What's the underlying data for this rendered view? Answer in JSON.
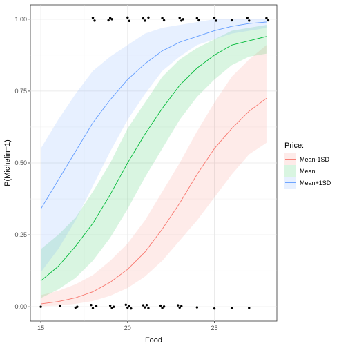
{
  "chart_data": {
    "type": "line",
    "xlabel": "Food",
    "ylabel": "P(Michelin=1)",
    "xlim": [
      14.4,
      28.6
    ],
    "ylim": [
      -0.05,
      1.05
    ],
    "x_ticks": [
      15,
      20,
      25
    ],
    "y_ticks": [
      0.0,
      0.25,
      0.5,
      0.75,
      1.0
    ],
    "x_tick_labels": [
      "15",
      "20",
      "25"
    ],
    "y_tick_labels": [
      "0.00",
      "0.25",
      "0.50",
      "0.75",
      "1.00"
    ],
    "grid": true,
    "legend": {
      "title": "Price:",
      "position": "right"
    },
    "x": [
      15,
      16,
      17,
      18,
      19,
      20,
      21,
      22,
      23,
      24,
      25,
      26,
      27,
      28
    ],
    "series": [
      {
        "name": "Mean-1SD",
        "color": "#F8766D",
        "fill": "#F8766D",
        "values": [
          0.01,
          0.018,
          0.031,
          0.052,
          0.085,
          0.13,
          0.19,
          0.27,
          0.36,
          0.46,
          0.55,
          0.62,
          0.68,
          0.725
        ],
        "lower": [
          0.002,
          0.004,
          0.01,
          0.02,
          0.038,
          0.065,
          0.105,
          0.16,
          0.23,
          0.3,
          0.38,
          0.46,
          0.53,
          0.57
        ],
        "upper": [
          0.04,
          0.055,
          0.078,
          0.11,
          0.16,
          0.22,
          0.3,
          0.4,
          0.5,
          0.61,
          0.71,
          0.8,
          0.86,
          0.91
        ]
      },
      {
        "name": "Mean",
        "color": "#00BA38",
        "fill": "#00BA38",
        "values": [
          0.09,
          0.14,
          0.21,
          0.29,
          0.39,
          0.5,
          0.6,
          0.69,
          0.77,
          0.83,
          0.875,
          0.91,
          0.925,
          0.94
        ],
        "lower": [
          0.03,
          0.06,
          0.1,
          0.16,
          0.24,
          0.34,
          0.45,
          0.55,
          0.65,
          0.73,
          0.79,
          0.84,
          0.87,
          0.88
        ],
        "upper": [
          0.2,
          0.25,
          0.31,
          0.4,
          0.5,
          0.62,
          0.71,
          0.8,
          0.86,
          0.9,
          0.93,
          0.96,
          0.97,
          0.98
        ]
      },
      {
        "name": "Mean+1SD",
        "color": "#619CFF",
        "fill": "#619CFF",
        "values": [
          0.34,
          0.44,
          0.54,
          0.64,
          0.72,
          0.79,
          0.845,
          0.89,
          0.92,
          0.94,
          0.96,
          0.975,
          0.985,
          0.99
        ],
        "lower": [
          0.12,
          0.2,
          0.3,
          0.42,
          0.54,
          0.65,
          0.74,
          0.82,
          0.87,
          0.91,
          0.93,
          0.95,
          0.96,
          0.97
        ],
        "upper": [
          0.55,
          0.65,
          0.74,
          0.82,
          0.87,
          0.91,
          0.95,
          0.97,
          0.98,
          0.99,
          1.0,
          1.0,
          1.0,
          1.0
        ]
      }
    ],
    "observations": [
      {
        "x": 15.0,
        "y": 0.0
      },
      {
        "x": 16.1,
        "y": 0.004
      },
      {
        "x": 17.0,
        "y": -0.003
      },
      {
        "x": 17.1,
        "y": 0.0
      },
      {
        "x": 17.9,
        "y": 0.006
      },
      {
        "x": 18.0,
        "y": -0.005
      },
      {
        "x": 18.2,
        "y": 0.002
      },
      {
        "x": 19.0,
        "y": 0.004
      },
      {
        "x": 19.1,
        "y": -0.004
      },
      {
        "x": 19.2,
        "y": 0.0
      },
      {
        "x": 19.9,
        "y": 0.007
      },
      {
        "x": 20.0,
        "y": -0.003
      },
      {
        "x": 20.1,
        "y": 0.003
      },
      {
        "x": 20.2,
        "y": -0.006
      },
      {
        "x": 20.9,
        "y": 0.005
      },
      {
        "x": 21.0,
        "y": -0.002
      },
      {
        "x": 21.1,
        "y": 0.006
      },
      {
        "x": 21.2,
        "y": -0.005
      },
      {
        "x": 21.9,
        "y": 0.004
      },
      {
        "x": 22.0,
        "y": -0.004
      },
      {
        "x": 22.1,
        "y": 0.001
      },
      {
        "x": 22.9,
        "y": 0.005
      },
      {
        "x": 23.0,
        "y": -0.003
      },
      {
        "x": 23.1,
        "y": 0.002
      },
      {
        "x": 24.0,
        "y": -0.002
      },
      {
        "x": 25.0,
        "y": -0.006
      },
      {
        "x": 26.0,
        "y": -0.005
      },
      {
        "x": 27.0,
        "y": -0.004
      },
      {
        "x": 18.0,
        "y": 1.005
      },
      {
        "x": 18.1,
        "y": 0.995
      },
      {
        "x": 18.9,
        "y": 0.996
      },
      {
        "x": 19.0,
        "y": 1.004
      },
      {
        "x": 19.1,
        "y": 1.0
      },
      {
        "x": 20.0,
        "y": 1.006
      },
      {
        "x": 20.1,
        "y": 0.994
      },
      {
        "x": 20.9,
        "y": 1.003
      },
      {
        "x": 21.0,
        "y": 0.995
      },
      {
        "x": 21.2,
        "y": 1.006
      },
      {
        "x": 22.0,
        "y": 1.004
      },
      {
        "x": 22.1,
        "y": 0.996
      },
      {
        "x": 23.0,
        "y": 1.005
      },
      {
        "x": 23.1,
        "y": 0.995
      },
      {
        "x": 23.2,
        "y": 1.0
      },
      {
        "x": 24.0,
        "y": 1.004
      },
      {
        "x": 24.1,
        "y": 0.996
      },
      {
        "x": 25.0,
        "y": 1.005
      },
      {
        "x": 25.1,
        "y": 0.995
      },
      {
        "x": 26.0,
        "y": 0.996
      },
      {
        "x": 26.9,
        "y": 1.005
      },
      {
        "x": 27.0,
        "y": 0.995
      },
      {
        "x": 28.0,
        "y": 1.004
      },
      {
        "x": 28.1,
        "y": 0.996
      }
    ]
  }
}
